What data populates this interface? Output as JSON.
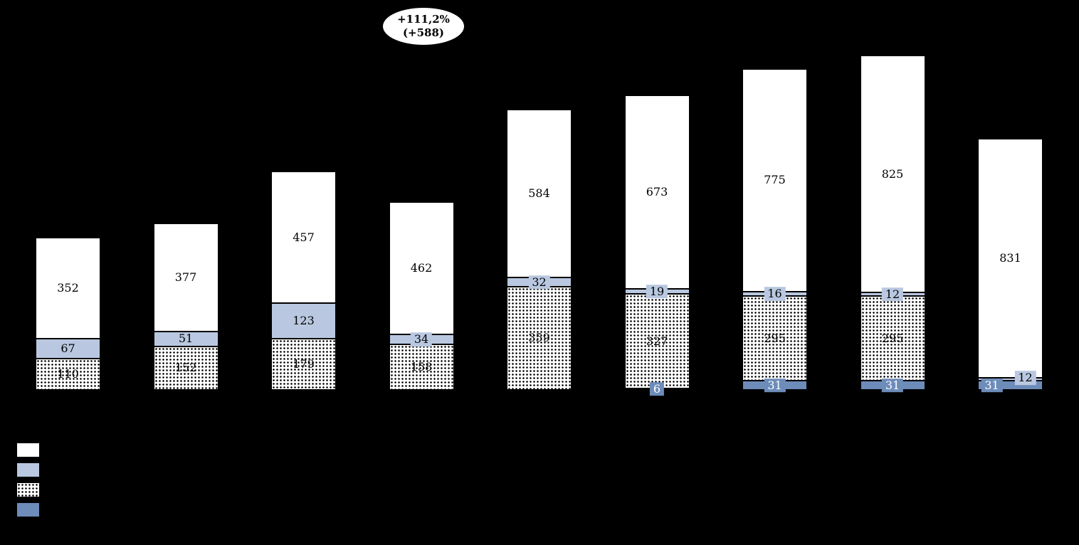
{
  "annotation": {
    "line1": "+111,2%",
    "line2": "(+588)"
  },
  "colors": {
    "background": "#000000",
    "white": "#ffffff",
    "light_blue": "#b9c8e0",
    "dark_blue": "#6d8cba",
    "dotted_base": "#ffffff",
    "dot_color": "#000000",
    "boxed_dark_label_text": "#ffffff",
    "default_label_text": "#000000"
  },
  "chart_data": {
    "type": "bar",
    "stacked": true,
    "bars": 9,
    "categories": [
      "",
      "",
      "",
      "",
      "",
      "",
      "",
      "",
      ""
    ],
    "series": [
      {
        "key": "dark_blue",
        "values": [
          0,
          0,
          0,
          0,
          0,
          6,
          31,
          31,
          31
        ]
      },
      {
        "key": "dotted",
        "values": [
          110,
          152,
          179,
          158,
          359,
          327,
          295,
          295,
          0
        ]
      },
      {
        "key": "light_blue",
        "values": [
          67,
          51,
          123,
          34,
          32,
          19,
          16,
          12,
          12
        ]
      },
      {
        "key": "white",
        "values": [
          352,
          377,
          457,
          462,
          584,
          673,
          775,
          825,
          831
        ]
      }
    ],
    "totals": [
      529,
      580,
      759,
      654,
      975,
      1025,
      1117,
      1163,
      874
    ],
    "legend_order": [
      {
        "key": "white"
      },
      {
        "key": "light_blue"
      },
      {
        "key": "dotted"
      },
      {
        "key": "dark_blue"
      }
    ],
    "annotation_text": "+111,2% (+588)",
    "legend_position": "bottom-left",
    "grid": false,
    "label_offsets": {
      "light_blue": {
        "8": {
          "dx": 21,
          "dy": -2
        }
      },
      "dark_blue": {
        "8": {
          "dx": -26,
          "dy": 0
        }
      }
    }
  }
}
